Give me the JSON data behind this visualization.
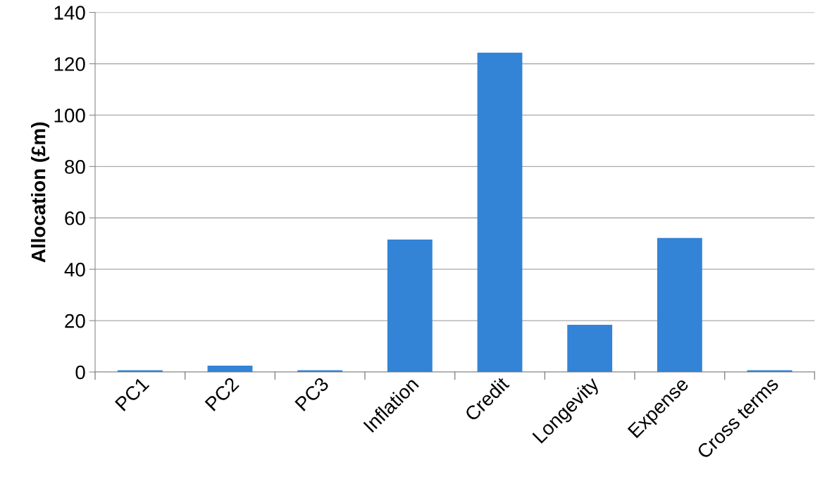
{
  "chart_data": {
    "type": "bar",
    "ylabel": "Allocation (£m)",
    "categories": [
      "PC1",
      "PC2",
      "PC3",
      "Inflation",
      "Credit",
      "Longevity",
      "Expense",
      "Cross terms"
    ],
    "values": [
      0.7,
      2.5,
      0.7,
      51.6,
      124.3,
      18.4,
      52.2,
      0.7
    ],
    "color": "#3383d6",
    "ylim": [
      0,
      140
    ],
    "yticks": [
      0,
      20,
      40,
      60,
      80,
      100,
      120,
      140
    ],
    "grid": "y",
    "legend": false
  }
}
